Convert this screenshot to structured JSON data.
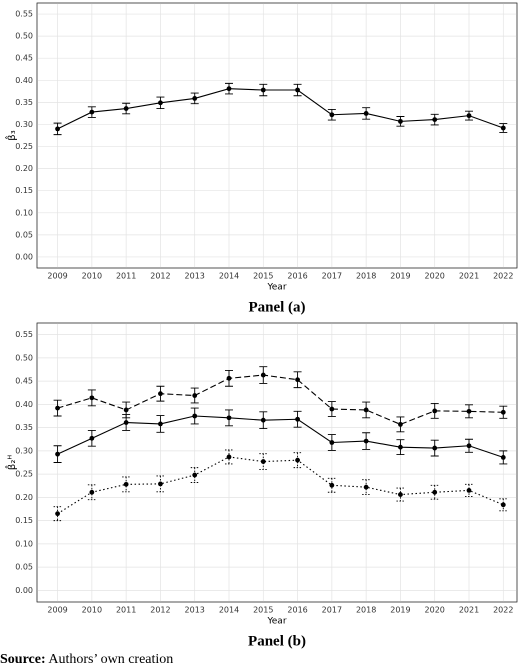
{
  "chart_data": [
    {
      "type": "line",
      "title": "Panel (a)",
      "x_label": "Year",
      "y_label": "β̂₃",
      "x": [
        2009,
        2010,
        2011,
        2012,
        2013,
        2014,
        2015,
        2016,
        2017,
        2018,
        2019,
        2020,
        2021,
        2022
      ],
      "xlim": [
        2008.4,
        2022.4
      ],
      "xticks": [
        2009,
        2010,
        2011,
        2012,
        2013,
        2014,
        2015,
        2016,
        2017,
        2018,
        2019,
        2020,
        2021,
        2022
      ],
      "ylim": [
        -0.025,
        0.575
      ],
      "yticks": [
        {
          "value": 0,
          "label": "0.00"
        },
        {
          "value": 0.05,
          "label": "0.05"
        },
        {
          "value": 0.1,
          "label": "0.10"
        },
        {
          "value": 0.15,
          "label": "0.15"
        },
        {
          "value": 0.2,
          "label": "0.20"
        },
        {
          "value": 0.25,
          "label": "0.25"
        },
        {
          "value": 0.3,
          "label": "0.30"
        },
        {
          "value": 0.35,
          "label": "0.35"
        },
        {
          "value": 0.4,
          "label": "0.40"
        },
        {
          "value": 0.45,
          "label": "0.45"
        },
        {
          "value": 0.5,
          "label": "0.50"
        },
        {
          "value": 0.55,
          "label": "0.55"
        }
      ],
      "grid": true,
      "series": [
        {
          "color": "#000000",
          "line_style": "solid",
          "values": [
            0.29,
            0.328,
            0.336,
            0.349,
            0.359,
            0.381,
            0.378,
            0.378,
            0.322,
            0.325,
            0.307,
            0.311,
            0.32,
            0.292
          ],
          "errors": [
            0.013,
            0.012,
            0.012,
            0.013,
            0.012,
            0.012,
            0.013,
            0.013,
            0.012,
            0.013,
            0.011,
            0.012,
            0.01,
            0.01
          ]
        }
      ]
    },
    {
      "type": "line",
      "title": "Panel (b)",
      "x_label": "Year",
      "y_label": "β̂₂ᴴ",
      "x": [
        2009,
        2010,
        2011,
        2012,
        2013,
        2014,
        2015,
        2016,
        2017,
        2018,
        2019,
        2020,
        2021,
        2022
      ],
      "xlim": [
        2008.4,
        2022.4
      ],
      "xticks": [
        2009,
        2010,
        2011,
        2012,
        2013,
        2014,
        2015,
        2016,
        2017,
        2018,
        2019,
        2020,
        2021,
        2022
      ],
      "ylim": [
        -0.025,
        0.575
      ],
      "yticks": [
        {
          "value": 0,
          "label": "0.00"
        },
        {
          "value": 0.05,
          "label": "0.05"
        },
        {
          "value": 0.1,
          "label": "0.10"
        },
        {
          "value": 0.15,
          "label": "0.15"
        },
        {
          "value": 0.2,
          "label": "0.20"
        },
        {
          "value": 0.25,
          "label": "0.25"
        },
        {
          "value": 0.3,
          "label": "0.30"
        },
        {
          "value": 0.35,
          "label": "0.35"
        },
        {
          "value": 0.4,
          "label": "0.40"
        },
        {
          "value": 0.45,
          "label": "0.45"
        },
        {
          "value": 0.5,
          "label": "0.50"
        },
        {
          "value": 0.55,
          "label": "0.55"
        }
      ],
      "grid": true,
      "series": [
        {
          "color": "#000000",
          "line_style": "dashed",
          "values": [
            0.392,
            0.414,
            0.388,
            0.423,
            0.419,
            0.456,
            0.463,
            0.453,
            0.39,
            0.388,
            0.357,
            0.386,
            0.385,
            0.383
          ],
          "errors": [
            0.017,
            0.017,
            0.017,
            0.016,
            0.016,
            0.017,
            0.018,
            0.017,
            0.016,
            0.017,
            0.016,
            0.016,
            0.014,
            0.013
          ]
        },
        {
          "color": "#000000",
          "line_style": "solid",
          "values": [
            0.293,
            0.327,
            0.361,
            0.358,
            0.375,
            0.371,
            0.366,
            0.368,
            0.318,
            0.321,
            0.308,
            0.306,
            0.311,
            0.286
          ],
          "errors": [
            0.018,
            0.017,
            0.017,
            0.018,
            0.017,
            0.017,
            0.018,
            0.017,
            0.017,
            0.018,
            0.016,
            0.017,
            0.014,
            0.014
          ]
        },
        {
          "color": "#000000",
          "line_style": "dotted",
          "values": [
            0.165,
            0.211,
            0.228,
            0.229,
            0.248,
            0.287,
            0.277,
            0.28,
            0.226,
            0.222,
            0.206,
            0.211,
            0.215,
            0.184
          ],
          "errors": [
            0.015,
            0.016,
            0.016,
            0.017,
            0.016,
            0.015,
            0.017,
            0.016,
            0.015,
            0.016,
            0.014,
            0.015,
            0.013,
            0.013
          ]
        }
      ]
    }
  ],
  "footer": {
    "label": "Source:",
    "text": "Authors’ own creation"
  }
}
